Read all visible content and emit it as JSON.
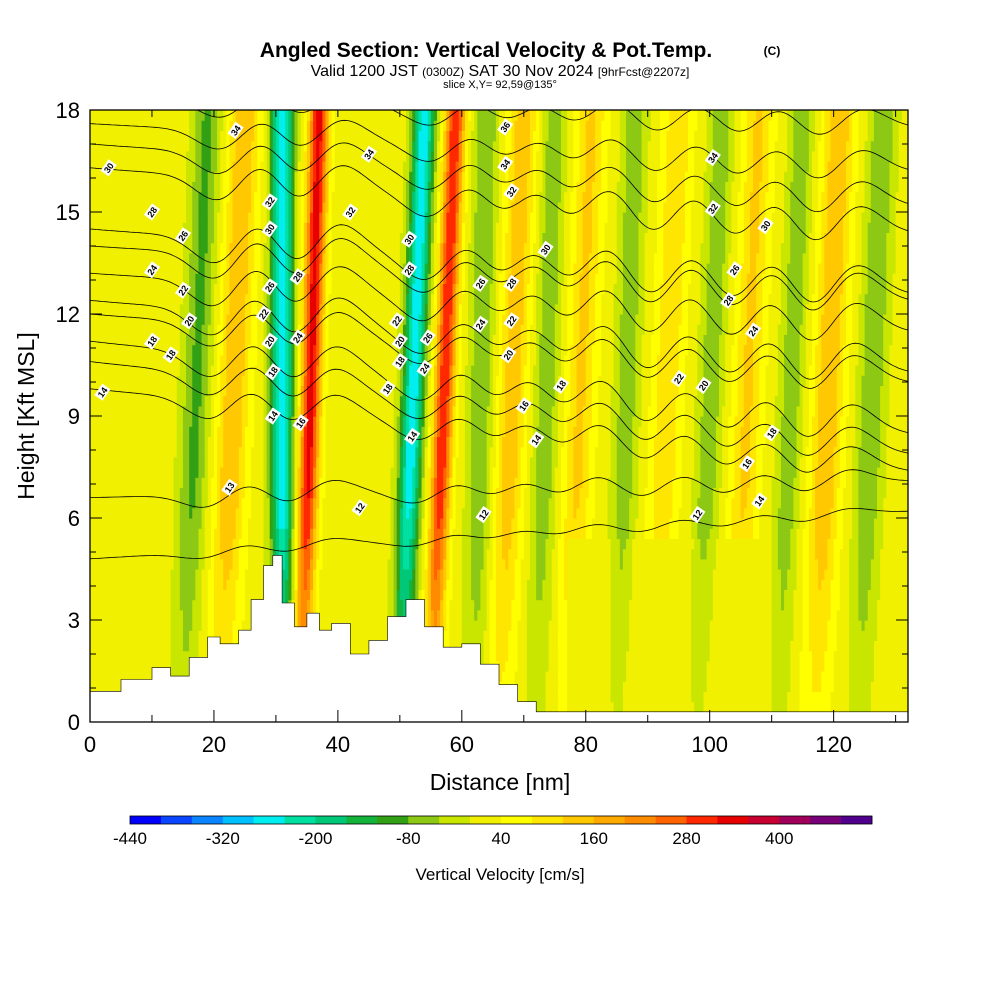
{
  "title": "Angled Section: Vertical Velocity & Pot.Temp.",
  "title_unit": "(C)",
  "subtitle_parts": [
    "Valid 1200 JST ",
    "(0300Z)",
    " SAT 30 Nov 2024 ",
    "[9hrFcst@2207z]"
  ],
  "slice_label": "slice X,Y= 92,59@135°",
  "chart_data": {
    "type": "heatmap",
    "xlabel": "Distance [nm]",
    "ylabel": "Height [Kft MSL]",
    "xlim": [
      0,
      132
    ],
    "ylim": [
      0,
      18
    ],
    "x_ticks": [
      "0",
      "20",
      "40",
      "60",
      "80",
      "100",
      "120"
    ],
    "x_tick_values": [
      0,
      20,
      40,
      60,
      80,
      100,
      120
    ],
    "y_ticks": [
      "0",
      "3",
      "6",
      "9",
      "12",
      "15",
      "18"
    ],
    "y_tick_values": [
      0,
      3,
      6,
      9,
      12,
      15,
      18
    ],
    "background_value_cm_s": 20,
    "updraft_bands": [
      {
        "x_top": 37,
        "x_bottom": 34,
        "value": 320,
        "width": 1.6
      },
      {
        "x_top": 59,
        "x_bottom": 55,
        "value": 300,
        "width": 1.6
      },
      {
        "x_top": 25,
        "x_bottom": 21,
        "value": 140,
        "width": 2.5
      },
      {
        "x_top": 70,
        "x_bottom": 66,
        "value": 130,
        "width": 2.3
      },
      {
        "x_top": 81,
        "x_bottom": 77,
        "value": 110,
        "width": 2.3
      },
      {
        "x_top": 95,
        "x_bottom": 91,
        "value": 100,
        "width": 2.3
      },
      {
        "x_top": 108,
        "x_bottom": 104,
        "value": 110,
        "width": 2.3
      },
      {
        "x_top": 121,
        "x_bottom": 117,
        "value": 140,
        "width": 2.5
      }
    ],
    "downdraft_bands": [
      {
        "x_top": 31,
        "x_bottom": 31,
        "value": -300,
        "width": 1.8
      },
      {
        "x_top": 54,
        "x_bottom": 50,
        "value": -290,
        "width": 1.8
      },
      {
        "x_top": 19,
        "x_bottom": 15,
        "value": -110,
        "width": 2.3
      },
      {
        "x_top": 64,
        "x_bottom": 62,
        "value": -100,
        "width": 2.0
      },
      {
        "x_top": 75,
        "x_bottom": 72,
        "value": -90,
        "width": 2.0
      },
      {
        "x_top": 88,
        "x_bottom": 85,
        "value": -90,
        "width": 2.0
      },
      {
        "x_top": 102,
        "x_bottom": 98,
        "value": -90,
        "width": 2.0
      },
      {
        "x_top": 115,
        "x_bottom": 111,
        "value": -90,
        "width": 2.0
      },
      {
        "x_top": 128,
        "x_bottom": 124,
        "value": -100,
        "width": 2.2
      }
    ],
    "terrain_kft": [
      [
        0,
        0.9
      ],
      [
        5,
        1.25
      ],
      [
        10,
        1.6
      ],
      [
        13,
        1.35
      ],
      [
        16,
        1.9
      ],
      [
        19,
        2.5
      ],
      [
        21,
        2.3
      ],
      [
        24,
        2.7
      ],
      [
        26,
        3.6
      ],
      [
        28,
        4.6
      ],
      [
        29.5,
        4.9
      ],
      [
        31,
        3.5
      ],
      [
        33,
        2.8
      ],
      [
        35,
        3.2
      ],
      [
        37,
        2.7
      ],
      [
        39,
        2.9
      ],
      [
        42,
        2.0
      ],
      [
        45,
        2.4
      ],
      [
        48,
        3.1
      ],
      [
        51,
        3.6
      ],
      [
        54,
        2.8
      ],
      [
        57,
        2.2
      ],
      [
        60,
        2.3
      ],
      [
        63,
        1.7
      ],
      [
        66,
        1.1
      ],
      [
        69,
        0.6
      ],
      [
        72,
        0.3
      ],
      [
        132,
        0.3
      ]
    ],
    "isentropes": [
      {
        "label": "12",
        "h_left": 4.8,
        "h_right": 6.2,
        "skew": 0.3
      },
      {
        "label": "13",
        "h_left": 6.6,
        "h_right": 7.1,
        "skew": 0.6
      },
      {
        "label": "14",
        "h_left": 9.8,
        "h_right": 7.4,
        "skew": 0.9
      },
      {
        "label": "16",
        "h_left": 10.6,
        "h_right": 7.9,
        "skew": 1.0
      },
      {
        "label": "18",
        "h_left": 11.2,
        "h_right": 8.5,
        "skew": 1.1
      },
      {
        "label": "20",
        "h_left": 12.0,
        "h_right": 10.0,
        "skew": 1.1
      },
      {
        "label": "22",
        "h_left": 12.4,
        "h_right": 10.3,
        "skew": 1.2
      },
      {
        "label": "24",
        "h_left": 13.2,
        "h_right": 11.5,
        "skew": 1.2
      },
      {
        "label": "26",
        "h_left": 14.0,
        "h_right": 12.4,
        "skew": 1.2
      },
      {
        "label": "28",
        "h_left": 14.5,
        "h_right": 12.6,
        "skew": 1.2
      },
      {
        "label": "30",
        "h_left": 16.3,
        "h_right": 14.4,
        "skew": 1.1
      },
      {
        "label": "32",
        "h_left": 17.0,
        "h_right": 15.2,
        "skew": 1.0
      },
      {
        "label": "34",
        "h_left": 17.6,
        "h_right": 16.2,
        "skew": 0.9
      },
      {
        "label": "36",
        "h_left": 18.4,
        "h_right": 17.5,
        "skew": 0.8
      }
    ],
    "contour_labels": [
      {
        "text": "30",
        "x": 3,
        "y": 16.3
      },
      {
        "text": "28",
        "x": 10,
        "y": 15.0
      },
      {
        "text": "26",
        "x": 15,
        "y": 14.3
      },
      {
        "text": "24",
        "x": 10,
        "y": 13.3
      },
      {
        "text": "22",
        "x": 15,
        "y": 12.7
      },
      {
        "text": "20",
        "x": 16,
        "y": 11.8
      },
      {
        "text": "18",
        "x": 10,
        "y": 11.2
      },
      {
        "text": "18",
        "x": 13,
        "y": 10.8
      },
      {
        "text": "14",
        "x": 2,
        "y": 9.7
      },
      {
        "text": "13",
        "x": 22.5,
        "y": 6.9
      },
      {
        "text": "34",
        "x": 23.5,
        "y": 17.4
      },
      {
        "text": "32",
        "x": 29,
        "y": 15.3
      },
      {
        "text": "30",
        "x": 29,
        "y": 14.5
      },
      {
        "text": "26",
        "x": 29,
        "y": 12.8
      },
      {
        "text": "22",
        "x": 28,
        "y": 12.0
      },
      {
        "text": "20",
        "x": 29,
        "y": 11.2
      },
      {
        "text": "18",
        "x": 29.5,
        "y": 10.3
      },
      {
        "text": "14",
        "x": 29.5,
        "y": 9.0
      },
      {
        "text": "28",
        "x": 33.5,
        "y": 13.1
      },
      {
        "text": "24",
        "x": 33.5,
        "y": 11.3
      },
      {
        "text": "16",
        "x": 34,
        "y": 8.8
      },
      {
        "text": "34",
        "x": 45,
        "y": 16.7
      },
      {
        "text": "32",
        "x": 42,
        "y": 15.0
      },
      {
        "text": "12",
        "x": 43.5,
        "y": 6.3
      },
      {
        "text": "18",
        "x": 48,
        "y": 9.8
      },
      {
        "text": "30",
        "x": 51.5,
        "y": 14.2
      },
      {
        "text": "28",
        "x": 51.5,
        "y": 13.3
      },
      {
        "text": "22",
        "x": 49.5,
        "y": 11.8
      },
      {
        "text": "20",
        "x": 50,
        "y": 11.2
      },
      {
        "text": "18",
        "x": 50,
        "y": 10.6
      },
      {
        "text": "14",
        "x": 52,
        "y": 8.4
      },
      {
        "text": "26",
        "x": 54.5,
        "y": 11.3
      },
      {
        "text": "24",
        "x": 54,
        "y": 10.4
      },
      {
        "text": "26",
        "x": 63,
        "y": 12.9
      },
      {
        "text": "28",
        "x": 68,
        "y": 12.9
      },
      {
        "text": "24",
        "x": 63,
        "y": 11.7
      },
      {
        "text": "22",
        "x": 68,
        "y": 11.8
      },
      {
        "text": "20",
        "x": 67.5,
        "y": 10.8
      },
      {
        "text": "16",
        "x": 70,
        "y": 9.3
      },
      {
        "text": "14",
        "x": 72,
        "y": 8.3
      },
      {
        "text": "12",
        "x": 63.5,
        "y": 6.1
      },
      {
        "text": "36",
        "x": 67,
        "y": 17.5
      },
      {
        "text": "34",
        "x": 67,
        "y": 16.4
      },
      {
        "text": "32",
        "x": 68,
        "y": 15.6
      },
      {
        "text": "30",
        "x": 73.5,
        "y": 13.9
      },
      {
        "text": "18",
        "x": 76,
        "y": 9.9
      },
      {
        "text": "34",
        "x": 100.5,
        "y": 16.6
      },
      {
        "text": "32",
        "x": 100.5,
        "y": 15.1
      },
      {
        "text": "30",
        "x": 109,
        "y": 14.6
      },
      {
        "text": "26",
        "x": 104,
        "y": 13.3
      },
      {
        "text": "28",
        "x": 103,
        "y": 12.4
      },
      {
        "text": "24",
        "x": 107,
        "y": 11.5
      },
      {
        "text": "22",
        "x": 95,
        "y": 10.1
      },
      {
        "text": "20",
        "x": 99,
        "y": 9.9
      },
      {
        "text": "18",
        "x": 110,
        "y": 8.5
      },
      {
        "text": "16",
        "x": 106,
        "y": 7.6
      },
      {
        "text": "14",
        "x": 108,
        "y": 6.5
      },
      {
        "text": "12",
        "x": 98,
        "y": 6.1
      }
    ],
    "colorbar": {
      "label": "Vertical Velocity [cm/s]",
      "levels": [
        -440,
        -400,
        -360,
        -320,
        -280,
        -240,
        -200,
        -160,
        -120,
        -80,
        -40,
        0,
        40,
        80,
        120,
        160,
        200,
        240,
        280,
        320,
        360,
        400,
        440,
        480
      ],
      "colors": [
        "#0000ff",
        "#0a46ff",
        "#0a84ff",
        "#00c0ff",
        "#00eef0",
        "#00e0a0",
        "#00c878",
        "#14b43c",
        "#32a014",
        "#8cc814",
        "#c8e600",
        "#f0f000",
        "#ffff00",
        "#ffe600",
        "#ffc800",
        "#ffaa00",
        "#ff8c00",
        "#ff6400",
        "#ff2800",
        "#e60000",
        "#c80032",
        "#a0005a",
        "#780078",
        "#50008c"
      ],
      "tick_labels": [
        "-440",
        "-320",
        "-200",
        "-80",
        "40",
        "160",
        "280",
        "400"
      ],
      "tick_values": [
        -440,
        -320,
        -200,
        -80,
        40,
        160,
        280,
        400
      ]
    }
  }
}
